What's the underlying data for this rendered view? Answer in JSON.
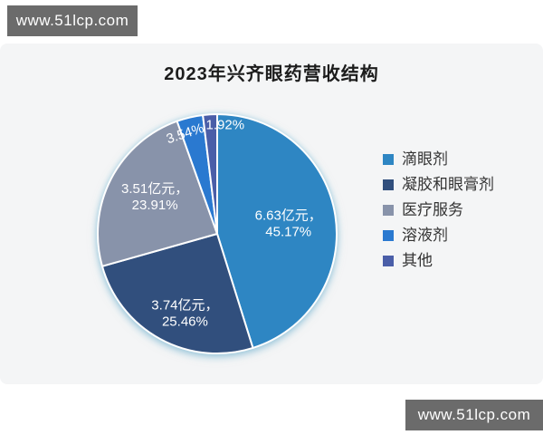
{
  "watermarks": {
    "top_left": "www.51lcp.com",
    "bottom_right": "www.51lcp.com"
  },
  "chart_data": {
    "type": "pie",
    "title": "2023年兴齐眼药营收结构",
    "value_unit": "亿元",
    "legend_position": "right",
    "start_angle_deg": 0,
    "direction": "clockwise",
    "slices": [
      {
        "label": "滴眼剂",
        "value": 6.63,
        "pct": 45.17,
        "color": "#2E86C3",
        "label_lines": [
          "6.63亿元，",
          "45.17%"
        ]
      },
      {
        "label": "凝胶和眼膏剂",
        "value": 3.74,
        "pct": 25.46,
        "color": "#314F7D",
        "label_lines": [
          "3.74亿元，",
          "25.46%"
        ]
      },
      {
        "label": "医疗服务",
        "value": 3.51,
        "pct": 23.91,
        "color": "#8893AA",
        "label_lines": [
          "3.51亿元，",
          "23.91%"
        ]
      },
      {
        "label": "溶液剂",
        "pct": 3.54,
        "color": "#2A79D0",
        "label_lines": [
          "3.54%"
        ]
      },
      {
        "label": "其他",
        "pct": 1.92,
        "color": "#4A5EA8",
        "label_lines": [
          "1.92%"
        ]
      }
    ]
  }
}
